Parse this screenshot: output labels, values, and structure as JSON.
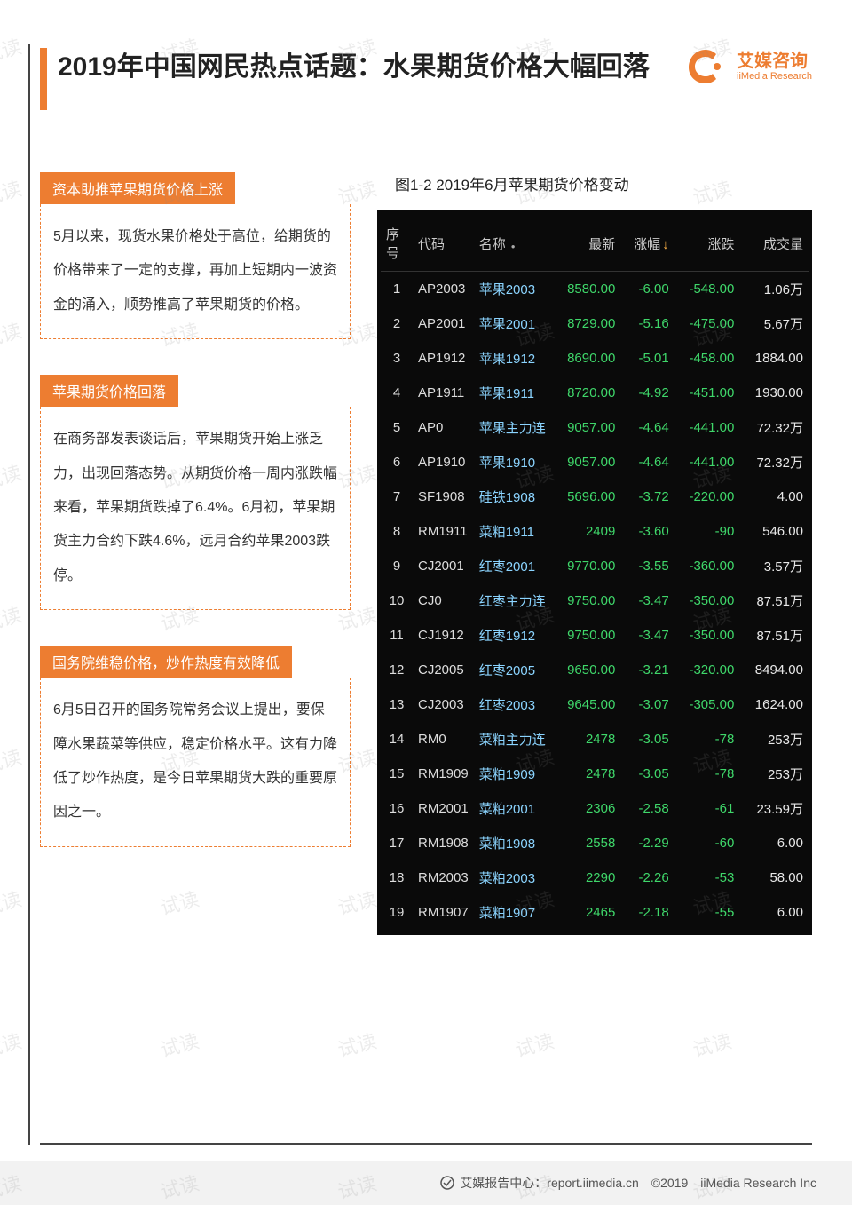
{
  "header": {
    "title": "2019年中国网民热点话题：水果期货价格大幅回落",
    "brand_name": "艾媒咨询",
    "brand_sub": "iiMedia Research"
  },
  "watermark": "试读",
  "sections": [
    {
      "label": "资本助推苹果期货价格上涨",
      "body": "5月以来，现货水果价格处于高位，给期货的价格带来了一定的支撑，再加上短期内一波资金的涌入，顺势推高了苹果期货的价格。"
    },
    {
      "label": "苹果期货价格回落",
      "body": "在商务部发表谈话后，苹果期货开始上涨乏力，出现回落态势。从期货价格一周内涨跌幅来看，苹果期货跌掉了6.4%。6月初，苹果期货主力合约下跌4.6%，远月合约苹果2003跌停。"
    },
    {
      "label": "国务院维稳价格，炒作热度有效降低",
      "body": "6月5日召开的国务院常务会议上提出，要保障水果蔬菜等供应，稳定价格水平。这有力降低了炒作热度，是今日苹果期货大跌的重要原因之一。"
    }
  ],
  "chart": {
    "title": "图1-2 2019年6月苹果期货价格变动",
    "background_color": "#0a0a0a",
    "header_color": "#cccccc",
    "name_color": "#8bd4ff",
    "neg_color": "#3fd76a",
    "white_color": "#e8e8e8",
    "columns": [
      "序号",
      "代码",
      "名称",
      "最新",
      "涨幅",
      "涨跌",
      "成交量"
    ],
    "rows": [
      {
        "idx": "1",
        "code": "AP2003",
        "name": "苹果2003",
        "last": "8580.00",
        "pct": "-6.00",
        "chg": "-548.00",
        "vol": "1.06万"
      },
      {
        "idx": "2",
        "code": "AP2001",
        "name": "苹果2001",
        "last": "8729.00",
        "pct": "-5.16",
        "chg": "-475.00",
        "vol": "5.67万"
      },
      {
        "idx": "3",
        "code": "AP1912",
        "name": "苹果1912",
        "last": "8690.00",
        "pct": "-5.01",
        "chg": "-458.00",
        "vol": "1884.00"
      },
      {
        "idx": "4",
        "code": "AP1911",
        "name": "苹果1911",
        "last": "8720.00",
        "pct": "-4.92",
        "chg": "-451.00",
        "vol": "1930.00"
      },
      {
        "idx": "5",
        "code": "AP0",
        "name": "苹果主力连",
        "last": "9057.00",
        "pct": "-4.64",
        "chg": "-441.00",
        "vol": "72.32万"
      },
      {
        "idx": "6",
        "code": "AP1910",
        "name": "苹果1910",
        "last": "9057.00",
        "pct": "-4.64",
        "chg": "-441.00",
        "vol": "72.32万"
      },
      {
        "idx": "7",
        "code": "SF1908",
        "name": "硅铁1908",
        "last": "5696.00",
        "pct": "-3.72",
        "chg": "-220.00",
        "vol": "4.00"
      },
      {
        "idx": "8",
        "code": "RM1911",
        "name": "菜粕1911",
        "last": "2409",
        "pct": "-3.60",
        "chg": "-90",
        "vol": "546.00"
      },
      {
        "idx": "9",
        "code": "CJ2001",
        "name": "红枣2001",
        "last": "9770.00",
        "pct": "-3.55",
        "chg": "-360.00",
        "vol": "3.57万"
      },
      {
        "idx": "10",
        "code": "CJ0",
        "name": "红枣主力连",
        "last": "9750.00",
        "pct": "-3.47",
        "chg": "-350.00",
        "vol": "87.51万"
      },
      {
        "idx": "11",
        "code": "CJ1912",
        "name": "红枣1912",
        "last": "9750.00",
        "pct": "-3.47",
        "chg": "-350.00",
        "vol": "87.51万"
      },
      {
        "idx": "12",
        "code": "CJ2005",
        "name": "红枣2005",
        "last": "9650.00",
        "pct": "-3.21",
        "chg": "-320.00",
        "vol": "8494.00"
      },
      {
        "idx": "13",
        "code": "CJ2003",
        "name": "红枣2003",
        "last": "9645.00",
        "pct": "-3.07",
        "chg": "-305.00",
        "vol": "1624.00"
      },
      {
        "idx": "14",
        "code": "RM0",
        "name": "菜粕主力连",
        "last": "2478",
        "pct": "-3.05",
        "chg": "-78",
        "vol": "253万"
      },
      {
        "idx": "15",
        "code": "RM1909",
        "name": "菜粕1909",
        "last": "2478",
        "pct": "-3.05",
        "chg": "-78",
        "vol": "253万"
      },
      {
        "idx": "16",
        "code": "RM2001",
        "name": "菜粕2001",
        "last": "2306",
        "pct": "-2.58",
        "chg": "-61",
        "vol": "23.59万"
      },
      {
        "idx": "17",
        "code": "RM1908",
        "name": "菜粕1908",
        "last": "2558",
        "pct": "-2.29",
        "chg": "-60",
        "vol": "6.00"
      },
      {
        "idx": "18",
        "code": "RM2003",
        "name": "菜粕2003",
        "last": "2290",
        "pct": "-2.26",
        "chg": "-53",
        "vol": "58.00"
      },
      {
        "idx": "19",
        "code": "RM1907",
        "name": "菜粕1907",
        "last": "2465",
        "pct": "-2.18",
        "chg": "-55",
        "vol": "6.00"
      }
    ]
  },
  "footer": {
    "text": "艾媒报告中心：report.iimedia.cn　©2019　iiMedia Research Inc"
  },
  "colors": {
    "accent": "#ed7d31",
    "text": "#333333",
    "title": "#222222"
  }
}
